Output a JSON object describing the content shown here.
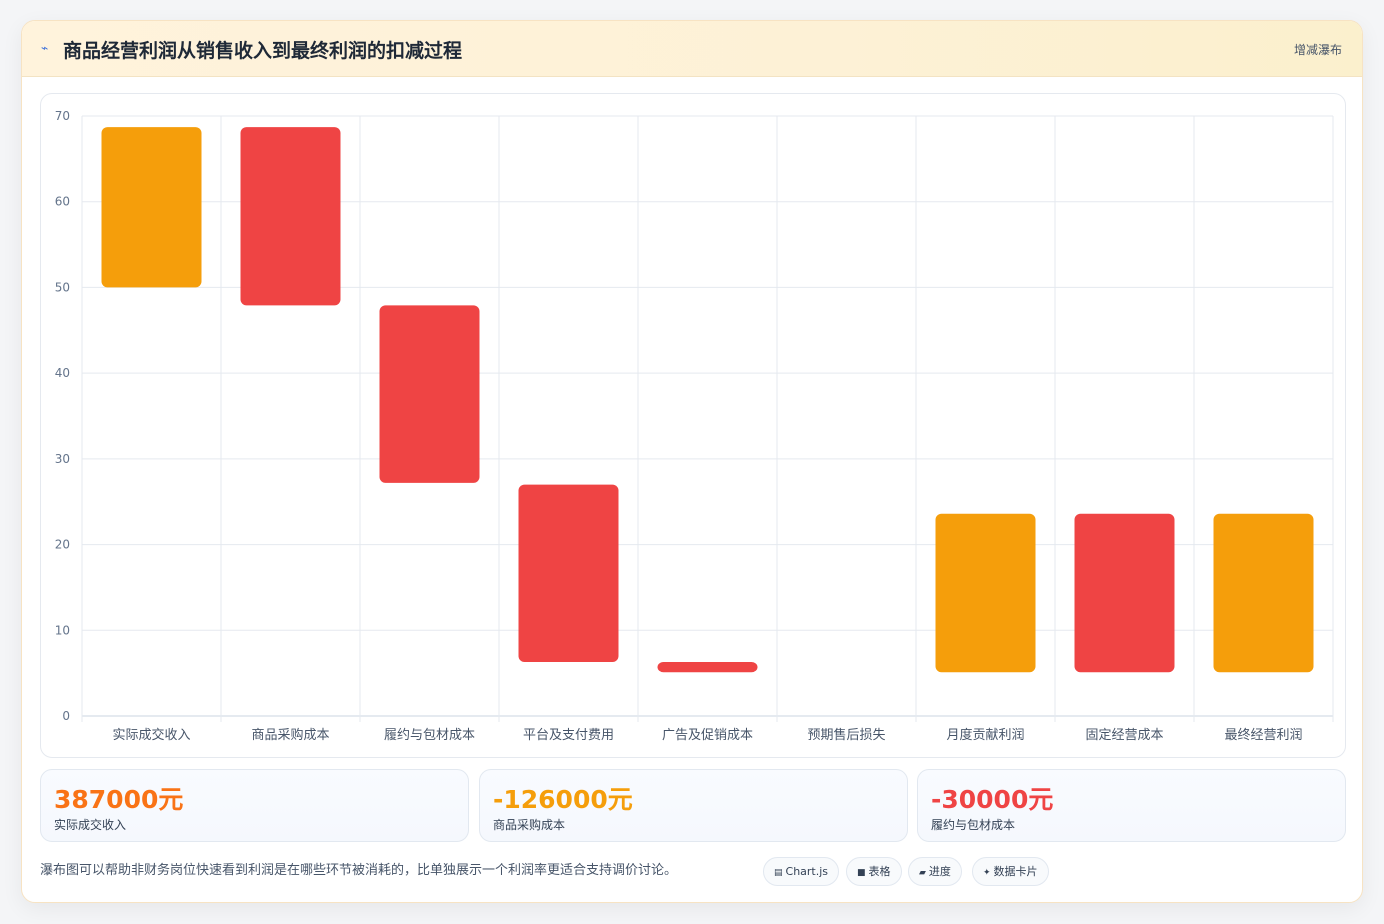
{
  "header": {
    "icon": "chart-trend-icon",
    "title": "商品经营利润从销售收入到最终利润的扣减过程",
    "badge": "增减瀑布"
  },
  "colors": {
    "total": "#f59e0b",
    "decrease": "#ef4444",
    "grid": "#e5e9ef",
    "tick": "#64748b",
    "label": "#475569",
    "revenue_value": "#f97316",
    "cost_value_1": "#f59e0b",
    "cost_value_2": "#ef4444"
  },
  "chart_data": {
    "type": "bar",
    "subtype": "floating-waterfall",
    "title": "",
    "xlabel": "",
    "ylabel": "",
    "ylim": [
      0,
      70
    ],
    "yticks": [
      0,
      10,
      20,
      30,
      40,
      50,
      60,
      70
    ],
    "grid": true,
    "legend": "none",
    "categories": [
      "实际成交收入",
      "商品采购成本",
      "履约与包材成本",
      "平台及支付费用",
      "广告及促销成本",
      "预期售后损失",
      "月度贡献利润",
      "固定经营成本",
      "最终经营利润"
    ],
    "bars": [
      {
        "category": "实际成交收入",
        "low": 50.0,
        "high": 68.7,
        "kind": "total"
      },
      {
        "category": "商品采购成本",
        "low": 47.9,
        "high": 68.7,
        "kind": "decrease"
      },
      {
        "category": "履约与包材成本",
        "low": 27.2,
        "high": 47.9,
        "kind": "decrease"
      },
      {
        "category": "平台及支付费用",
        "low": 6.3,
        "high": 27.0,
        "kind": "decrease"
      },
      {
        "category": "广告及促销成本",
        "low": 5.1,
        "high": 6.3,
        "kind": "decrease"
      },
      {
        "category": "预期售后损失",
        "low": null,
        "high": null,
        "kind": "decrease"
      },
      {
        "category": "月度贡献利润",
        "low": 5.1,
        "high": 23.6,
        "kind": "total"
      },
      {
        "category": "固定经营成本",
        "low": 5.1,
        "high": 23.6,
        "kind": "decrease"
      },
      {
        "category": "最终经营利润",
        "low": 5.1,
        "high": 23.6,
        "kind": "total"
      }
    ]
  },
  "stats": [
    {
      "value": "387000元",
      "label": "实际成交收入"
    },
    {
      "value": "-126000元",
      "label": "商品采购成本"
    },
    {
      "value": "-30000元",
      "label": "履约与包材成本"
    }
  ],
  "footnote": "瀑布图可以帮助非财务岗位快速看到利润是在哪些环节被消耗的，比单独展示一个利润率更适合支持调价讨论。",
  "tags": [
    {
      "icon": "chart-icon",
      "glyph": "▤",
      "label": "Chart.js"
    },
    {
      "icon": "table-icon",
      "glyph": "■",
      "label": "表格"
    },
    {
      "icon": "progress-icon",
      "glyph": "▰",
      "label": "进度"
    },
    {
      "icon": "data-card-icon",
      "glyph": "✦",
      "label": "数据卡片"
    }
  ]
}
